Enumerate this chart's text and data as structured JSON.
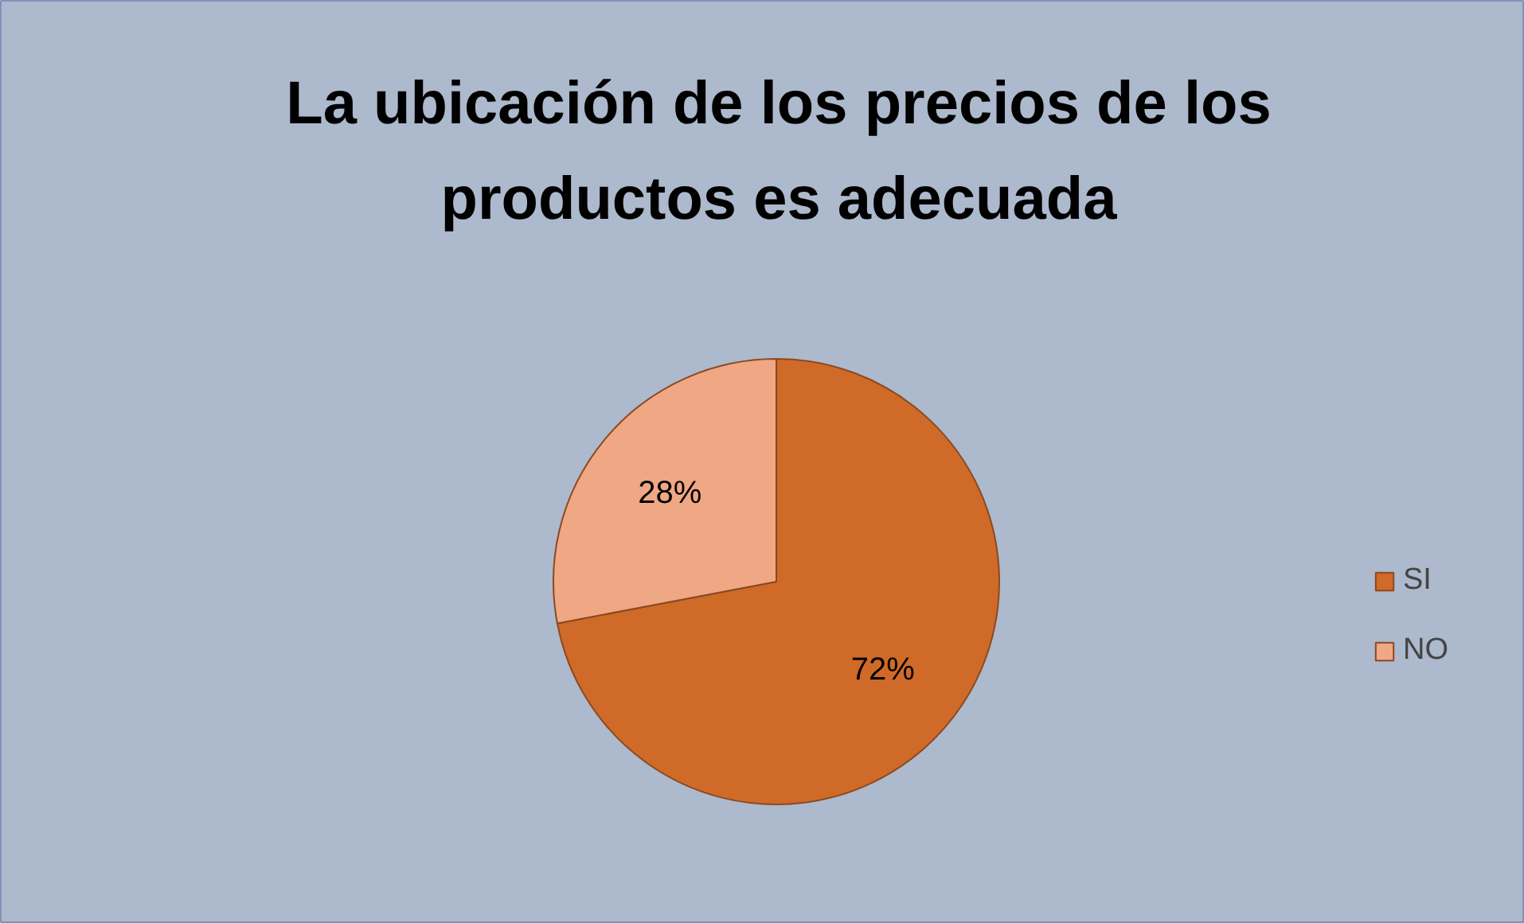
{
  "chart_data": {
    "type": "pie",
    "title": "La ubicación de los precios de los productos es adecuada",
    "categories": [
      "SI",
      "NO"
    ],
    "values": [
      72,
      28
    ],
    "colors": [
      "#d06a28",
      "#f0a784"
    ],
    "value_labels": [
      "72%",
      "28%"
    ],
    "legend": "right"
  }
}
